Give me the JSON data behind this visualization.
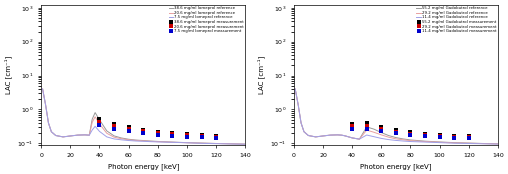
{
  "xlabel": "Photon energy [keV]",
  "ylabel": "LAC [cm⁻¹]",
  "xlim": [
    0,
    140
  ],
  "left_legend_refs": [
    "38.6 mg/ml Iomeprol reference",
    "20.6 mg/ml Iomeprol reference",
    "7.5 mg/ml Iomeprol reference"
  ],
  "left_legend_meas": [
    "38.6 mg/ml Iomeprol measurement",
    "20.6 mg/ml Iomeprol measurement",
    "7.5 mg/ml Iomeprol measurement"
  ],
  "right_legend_refs": [
    "55.2 mg/ml Gadobutrol reference",
    "29.2 mg/ml Gadobutrol reference",
    "11.4 mg/ml Gadobutrol reference"
  ],
  "right_legend_meas": [
    "55.2 mg/ml Gadobutrol measurement",
    "29.2 mg/ml Gadobutrol measurement",
    "11.4 mg/ml Gadobutrol measurement"
  ],
  "ref_colors": [
    "#999999",
    "#e8a0a0",
    "#a0a0e8"
  ],
  "meas_colors": [
    "#000000",
    "#cc0000",
    "#0000cc"
  ],
  "ref_energies": [
    1,
    3,
    5,
    7,
    10,
    15,
    20,
    25,
    30,
    33,
    35,
    37,
    40,
    45,
    50,
    55,
    60,
    65,
    70,
    75,
    80,
    90,
    100,
    110,
    120,
    130,
    140
  ],
  "meas_energies": [
    40,
    50,
    60,
    70,
    80,
    90,
    100,
    110,
    120
  ],
  "water_base": [
    4.0,
    1.4,
    0.4,
    0.22,
    0.17,
    0.155,
    0.165,
    0.175,
    0.178,
    0.174,
    0.167,
    0.158,
    0.145,
    0.133,
    0.126,
    0.122,
    0.118,
    0.115,
    0.113,
    0.111,
    0.109,
    0.106,
    0.103,
    0.1,
    0.098,
    0.096,
    0.094
  ],
  "iomeprol_c1_add": [
    0.0,
    0.0,
    0.0,
    0.0,
    0.0,
    0.0,
    0.0,
    0.0,
    0.0,
    0.0,
    0.35,
    0.65,
    0.35,
    0.1,
    0.04,
    0.022,
    0.014,
    0.01,
    0.008,
    0.006,
    0.005,
    0.003,
    0.002,
    0.002,
    0.001,
    0.001,
    0.001
  ],
  "iomeprol_c2_add": [
    0.0,
    0.0,
    0.0,
    0.0,
    0.0,
    0.0,
    0.0,
    0.0,
    0.0,
    0.0,
    0.25,
    0.45,
    0.23,
    0.065,
    0.026,
    0.015,
    0.009,
    0.007,
    0.005,
    0.004,
    0.003,
    0.002,
    0.001,
    0.001,
    0.001,
    0.001,
    0.0
  ],
  "iomeprol_c3_add": [
    0.0,
    0.0,
    0.0,
    0.0,
    0.0,
    0.0,
    0.0,
    0.0,
    0.0,
    0.0,
    0.08,
    0.16,
    0.08,
    0.022,
    0.009,
    0.005,
    0.003,
    0.002,
    0.002,
    0.001,
    0.001,
    0.001,
    0.001,
    0.0,
    0.0,
    0.0,
    0.0
  ],
  "iomeprol_c1_scale": 1.0,
  "iomeprol_c2_scale": 1.0,
  "iomeprol_c3_scale": 1.0,
  "gadobutrol_c1_add": [
    0.0,
    0.0,
    0.0,
    0.0,
    0.0,
    0.0,
    0.0,
    0.0,
    0.0,
    0.0,
    0.0,
    0.0,
    0.0,
    0.0,
    0.18,
    0.14,
    0.09,
    0.055,
    0.035,
    0.024,
    0.017,
    0.01,
    0.007,
    0.005,
    0.004,
    0.003,
    0.003
  ],
  "gadobutrol_c2_add": [
    0.0,
    0.0,
    0.0,
    0.0,
    0.0,
    0.0,
    0.0,
    0.0,
    0.0,
    0.0,
    0.0,
    0.0,
    0.0,
    0.0,
    0.12,
    0.09,
    0.06,
    0.037,
    0.023,
    0.016,
    0.011,
    0.007,
    0.005,
    0.003,
    0.003,
    0.002,
    0.002
  ],
  "gadobutrol_c3_add": [
    0.0,
    0.0,
    0.0,
    0.0,
    0.0,
    0.0,
    0.0,
    0.0,
    0.0,
    0.0,
    0.0,
    0.0,
    0.0,
    0.0,
    0.05,
    0.035,
    0.022,
    0.014,
    0.009,
    0.006,
    0.004,
    0.003,
    0.002,
    0.001,
    0.001,
    0.001,
    0.001
  ],
  "iomeprol_meas_c1": [
    0.52,
    0.38,
    0.3,
    0.25,
    0.22,
    0.2,
    0.185,
    0.175,
    0.168
  ],
  "iomeprol_meas_c2": [
    0.44,
    0.33,
    0.27,
    0.23,
    0.2,
    0.185,
    0.172,
    0.163,
    0.157
  ],
  "iomeprol_meas_c3": [
    0.34,
    0.27,
    0.23,
    0.2,
    0.18,
    0.168,
    0.158,
    0.15,
    0.144
  ],
  "gadobutrol_meas_c1": [
    0.38,
    0.39,
    0.3,
    0.245,
    0.21,
    0.195,
    0.18,
    0.17,
    0.163
  ],
  "gadobutrol_meas_c2": [
    0.32,
    0.33,
    0.265,
    0.22,
    0.195,
    0.18,
    0.167,
    0.158,
    0.152
  ],
  "gadobutrol_meas_c3": [
    0.26,
    0.27,
    0.23,
    0.196,
    0.175,
    0.163,
    0.153,
    0.145,
    0.14
  ],
  "figsize": [
    5.08,
    1.74
  ],
  "dpi": 100
}
